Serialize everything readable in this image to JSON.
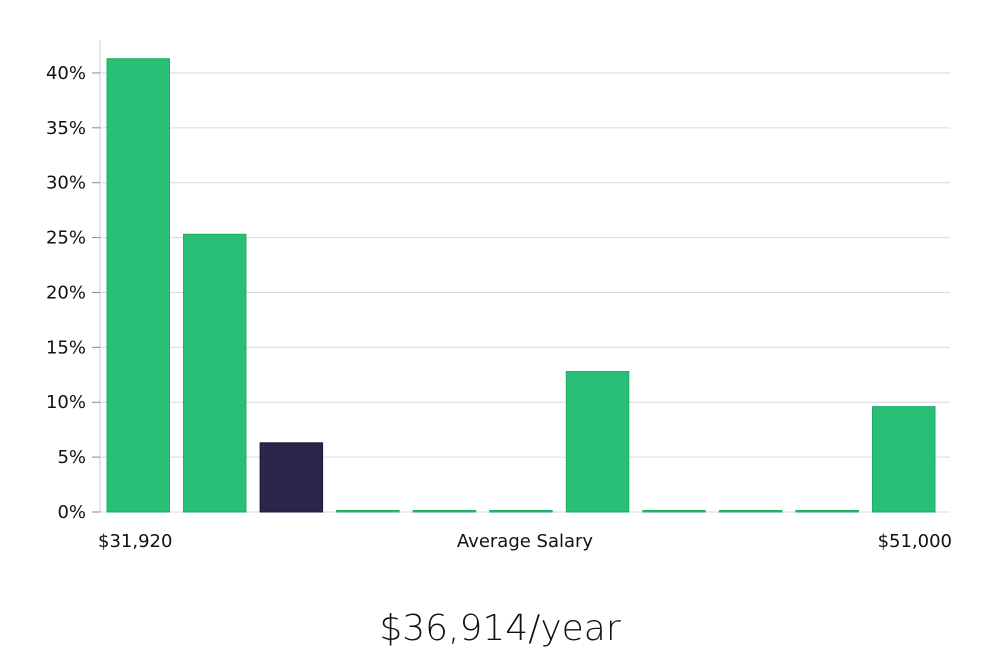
{
  "chart_data": {
    "type": "bar",
    "title": "",
    "xlabel": "Average Salary",
    "ylabel": "",
    "ylim": [
      0,
      43
    ],
    "y_ticks": [
      "0%",
      "5%",
      "10%",
      "15%",
      "20%",
      "25%",
      "30%",
      "35%",
      "40%"
    ],
    "y_tick_values": [
      0,
      5,
      10,
      15,
      20,
      25,
      30,
      35,
      40
    ],
    "x_range_labels": [
      "$31,920",
      "$51,000"
    ],
    "values": [
      41.3,
      25.3,
      6.3,
      0.1,
      0.1,
      0.1,
      12.8,
      0.1,
      0.1,
      0.1,
      9.6
    ],
    "highlight_index": 2,
    "grid": true,
    "colors": {
      "bar": "#2abf77",
      "bar_stroke": "#1fae66",
      "highlight": "#2a264a",
      "grid": "#d9d9d9",
      "axis": "#cccccc"
    }
  },
  "summary": {
    "salary": "$36,914/year"
  }
}
